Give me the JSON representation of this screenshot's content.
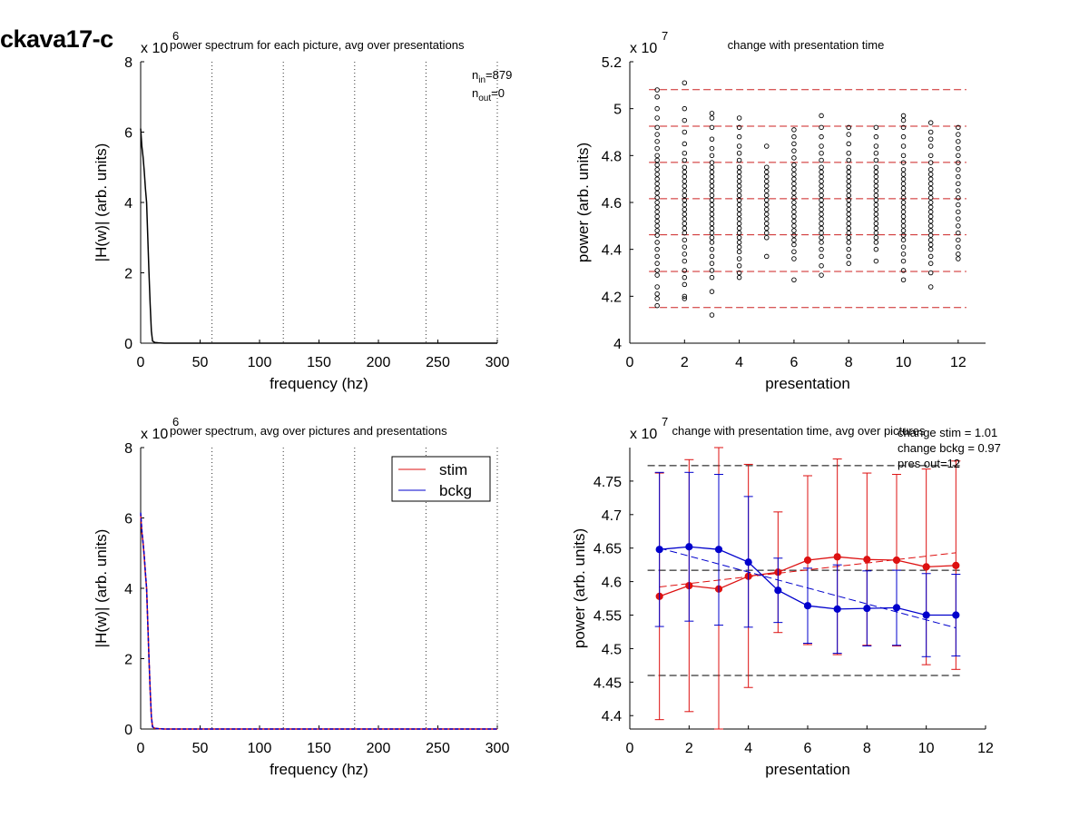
{
  "page_title": "ckava17-c",
  "chart_data": [
    {
      "id": "spectrum_each",
      "type": "line",
      "title": "power spectrum for each picture, avg over presentations",
      "xlabel": "frequency (hz)",
      "ylabel": "|H(w)| (arb. units)",
      "xlim": [
        0,
        300
      ],
      "ylim": [
        0,
        8
      ],
      "xticks": [
        "0",
        "50",
        "100",
        "150",
        "200",
        "250",
        "300"
      ],
      "yticks": [
        "0",
        "2",
        "4",
        "6",
        "8"
      ],
      "exponent": "x 10",
      "exponent_power": "6",
      "grid_x": [
        60,
        120,
        180,
        240,
        300
      ],
      "annotations": {
        "n_in_label": "n",
        "n_in_sub": "in",
        "n_in_value": "=879",
        "n_out_label": "n",
        "n_out_sub": "out",
        "n_out_value": "=0"
      },
      "x": [
        0,
        1,
        2,
        3,
        4,
        5,
        6,
        7,
        8,
        9,
        10,
        12,
        15,
        20,
        40,
        80,
        150,
        300
      ],
      "series": [
        {
          "color": "#000000",
          "values": [
            6.1,
            5.6,
            5.3,
            4.9,
            4.4,
            4.0,
            3.0,
            2.0,
            1.1,
            0.35,
            0.06,
            0.02,
            0.01,
            0.0,
            0.0,
            0.0,
            0.0,
            0.0
          ]
        }
      ]
    },
    {
      "id": "change_presentation",
      "type": "scatter",
      "title": "change with presentation time",
      "xlabel": "presentation",
      "ylabel": "power (arb. units)",
      "xlim": [
        0,
        13
      ],
      "ylim": [
        4.0,
        5.2
      ],
      "xticks": [
        0,
        2,
        4,
        6,
        8,
        10,
        12
      ],
      "yticks": [
        4.0,
        4.2,
        4.4,
        4.6,
        4.8,
        5.0,
        5.2
      ],
      "ytick_labels": [
        "4",
        "4.2",
        "4.4",
        "4.6",
        "4.8",
        "5",
        "5.2"
      ],
      "exponent": "x 10",
      "exponent_power": "7",
      "hlines": [
        4.152,
        4.306,
        4.462,
        4.616,
        4.771,
        4.925,
        5.081
      ],
      "hline_color": "#cc2222",
      "points": {
        "1": [
          4.16,
          4.19,
          4.21,
          4.24,
          4.29,
          4.31,
          4.34,
          4.37,
          4.4,
          4.43,
          4.46,
          4.48,
          4.5,
          4.52,
          4.54,
          4.56,
          4.58,
          4.6,
          4.62,
          4.64,
          4.66,
          4.68,
          4.7,
          4.72,
          4.74,
          4.76,
          4.78,
          4.8,
          4.83,
          4.86,
          4.89,
          4.92,
          4.96,
          5.0,
          5.05,
          5.08
        ],
        "2": [
          4.19,
          4.2,
          4.25,
          4.28,
          4.31,
          4.35,
          4.38,
          4.41,
          4.44,
          4.47,
          4.49,
          4.51,
          4.53,
          4.55,
          4.57,
          4.59,
          4.61,
          4.63,
          4.65,
          4.67,
          4.69,
          4.71,
          4.73,
          4.75,
          4.78,
          4.81,
          4.85,
          4.9,
          4.95,
          5.0,
          5.11
        ],
        "3": [
          4.12,
          4.22,
          4.28,
          4.31,
          4.34,
          4.37,
          4.4,
          4.43,
          4.45,
          4.47,
          4.49,
          4.51,
          4.53,
          4.55,
          4.57,
          4.59,
          4.61,
          4.63,
          4.65,
          4.67,
          4.69,
          4.71,
          4.73,
          4.75,
          4.77,
          4.8,
          4.83,
          4.87,
          4.92,
          4.96,
          4.98
        ],
        "4": [
          4.28,
          4.3,
          4.33,
          4.36,
          4.39,
          4.41,
          4.43,
          4.45,
          4.47,
          4.49,
          4.51,
          4.53,
          4.55,
          4.57,
          4.59,
          4.61,
          4.63,
          4.65,
          4.67,
          4.69,
          4.71,
          4.73,
          4.75,
          4.78,
          4.81,
          4.84,
          4.88,
          4.92,
          4.96
        ],
        "5": [
          4.37,
          4.45,
          4.47,
          4.49,
          4.51,
          4.53,
          4.55,
          4.57,
          4.59,
          4.61,
          4.63,
          4.65,
          4.67,
          4.69,
          4.71,
          4.73,
          4.75,
          4.84
        ],
        "6": [
          4.27,
          4.36,
          4.39,
          4.42,
          4.44,
          4.46,
          4.48,
          4.5,
          4.52,
          4.54,
          4.56,
          4.58,
          4.6,
          4.62,
          4.64,
          4.66,
          4.68,
          4.7,
          4.72,
          4.74,
          4.76,
          4.79,
          4.82,
          4.85,
          4.88,
          4.91
        ],
        "7": [
          4.29,
          4.33,
          4.37,
          4.4,
          4.43,
          4.45,
          4.47,
          4.49,
          4.51,
          4.53,
          4.55,
          4.57,
          4.59,
          4.61,
          4.63,
          4.65,
          4.67,
          4.69,
          4.71,
          4.73,
          4.75,
          4.78,
          4.81,
          4.84,
          4.88,
          4.92,
          4.97
        ],
        "8": [
          4.34,
          4.37,
          4.4,
          4.43,
          4.45,
          4.47,
          4.49,
          4.51,
          4.53,
          4.55,
          4.57,
          4.59,
          4.61,
          4.63,
          4.65,
          4.67,
          4.69,
          4.71,
          4.73,
          4.75,
          4.78,
          4.81,
          4.85,
          4.89,
          4.92
        ],
        "9": [
          4.35,
          4.4,
          4.43,
          4.45,
          4.47,
          4.49,
          4.51,
          4.53,
          4.55,
          4.57,
          4.59,
          4.61,
          4.63,
          4.65,
          4.67,
          4.69,
          4.71,
          4.73,
          4.75,
          4.78,
          4.81,
          4.84,
          4.88,
          4.92
        ],
        "10": [
          4.27,
          4.31,
          4.35,
          4.38,
          4.41,
          4.44,
          4.46,
          4.48,
          4.5,
          4.52,
          4.54,
          4.56,
          4.58,
          4.6,
          4.62,
          4.64,
          4.66,
          4.68,
          4.7,
          4.72,
          4.74,
          4.77,
          4.8,
          4.84,
          4.88,
          4.92,
          4.95,
          4.97
        ],
        "11": [
          4.24,
          4.3,
          4.34,
          4.37,
          4.4,
          4.42,
          4.44,
          4.46,
          4.48,
          4.5,
          4.52,
          4.54,
          4.56,
          4.58,
          4.6,
          4.62,
          4.64,
          4.66,
          4.68,
          4.7,
          4.72,
          4.74,
          4.77,
          4.8,
          4.84,
          4.87,
          4.9,
          4.94
        ],
        "12": [
          4.36,
          4.38,
          4.41,
          4.44,
          4.47,
          4.5,
          4.53,
          4.56,
          4.59,
          4.62,
          4.65,
          4.68,
          4.71,
          4.74,
          4.77,
          4.8,
          4.83,
          4.86,
          4.89,
          4.92
        ]
      }
    },
    {
      "id": "spectrum_avg",
      "type": "line",
      "title": "power spectrum, avg over pictures and presentations",
      "xlabel": "frequency (hz)",
      "ylabel": "|H(w)| (arb. units)",
      "xlim": [
        0,
        300
      ],
      "ylim": [
        0,
        8
      ],
      "xticks": [
        "0",
        "50",
        "100",
        "150",
        "200",
        "250",
        "300"
      ],
      "yticks": [
        "0",
        "2",
        "4",
        "6",
        "8"
      ],
      "exponent": "x 10",
      "exponent_power": "6",
      "grid_x": [
        60,
        120,
        180,
        240,
        300
      ],
      "legend": {
        "position": "top-right",
        "entries": [
          "stim",
          "bckg"
        ]
      },
      "x": [
        0,
        1,
        2,
        3,
        4,
        5,
        6,
        7,
        8,
        9,
        10,
        12,
        15,
        20,
        40,
        80,
        150,
        300
      ],
      "series": [
        {
          "name": "stim",
          "color": "#dd1111",
          "values": [
            6.1,
            5.6,
            5.3,
            4.9,
            4.4,
            4.0,
            3.0,
            2.0,
            1.1,
            0.35,
            0.06,
            0.02,
            0.01,
            0.0,
            0.0,
            0.0,
            0.0,
            0.0
          ]
        },
        {
          "name": "bckg",
          "color": "#0000cc",
          "values": [
            6.15,
            5.65,
            5.3,
            4.95,
            4.45,
            4.0,
            3.0,
            2.0,
            1.1,
            0.35,
            0.06,
            0.02,
            0.01,
            0.0,
            0.0,
            0.0,
            0.0,
            0.0
          ]
        }
      ]
    },
    {
      "id": "change_avg",
      "type": "line",
      "title": "change with presentation time, avg over pictures",
      "xlabel": "presentation",
      "ylabel": "power (arb. units)",
      "xlim": [
        0,
        12
      ],
      "ylim": [
        4.38,
        4.8
      ],
      "xticks": [
        0,
        2,
        4,
        6,
        8,
        10,
        12
      ],
      "yticks": [
        4.4,
        4.45,
        4.5,
        4.55,
        4.6,
        4.65,
        4.7,
        4.75
      ],
      "ytick_labels": [
        "4.4",
        "4.45",
        "4.5",
        "4.55",
        "4.6",
        "4.65",
        "4.7",
        "4.75"
      ],
      "exponent": "x 10",
      "exponent_power": "7",
      "hlines": [
        4.46,
        4.617,
        4.773
      ],
      "annotations": [
        "change stim = 1.01",
        "change bckg = 0.97",
        "pres out=12"
      ],
      "x": [
        1,
        2,
        3,
        4,
        5,
        6,
        7,
        8,
        9,
        10,
        11
      ],
      "series": [
        {
          "name": "stim",
          "color": "#dd1111",
          "values": [
            4.578,
            4.594,
            4.589,
            4.608,
            4.614,
            4.632,
            4.637,
            4.633,
            4.632,
            4.622,
            4.624
          ],
          "err_low": [
            4.394,
            4.406,
            4.38,
            4.442,
            4.524,
            4.506,
            4.491,
            4.505,
            4.504,
            4.476,
            4.469
          ],
          "err_high": [
            4.762,
            4.782,
            4.8,
            4.775,
            4.704,
            4.758,
            4.783,
            4.762,
            4.76,
            4.768,
            4.78
          ],
          "trend": [
            4.592,
            4.643
          ]
        },
        {
          "name": "bckg",
          "color": "#0000cc",
          "values": [
            4.648,
            4.652,
            4.648,
            4.629,
            4.587,
            4.564,
            4.559,
            4.56,
            4.561,
            4.55,
            4.55
          ],
          "err_low": [
            4.533,
            4.541,
            4.535,
            4.532,
            4.539,
            4.508,
            4.493,
            4.504,
            4.505,
            4.488,
            4.489
          ],
          "err_high": [
            4.763,
            4.763,
            4.76,
            4.727,
            4.635,
            4.62,
            4.625,
            4.616,
            4.617,
            4.612,
            4.611
          ],
          "trend": [
            4.65,
            4.531
          ]
        }
      ]
    }
  ]
}
